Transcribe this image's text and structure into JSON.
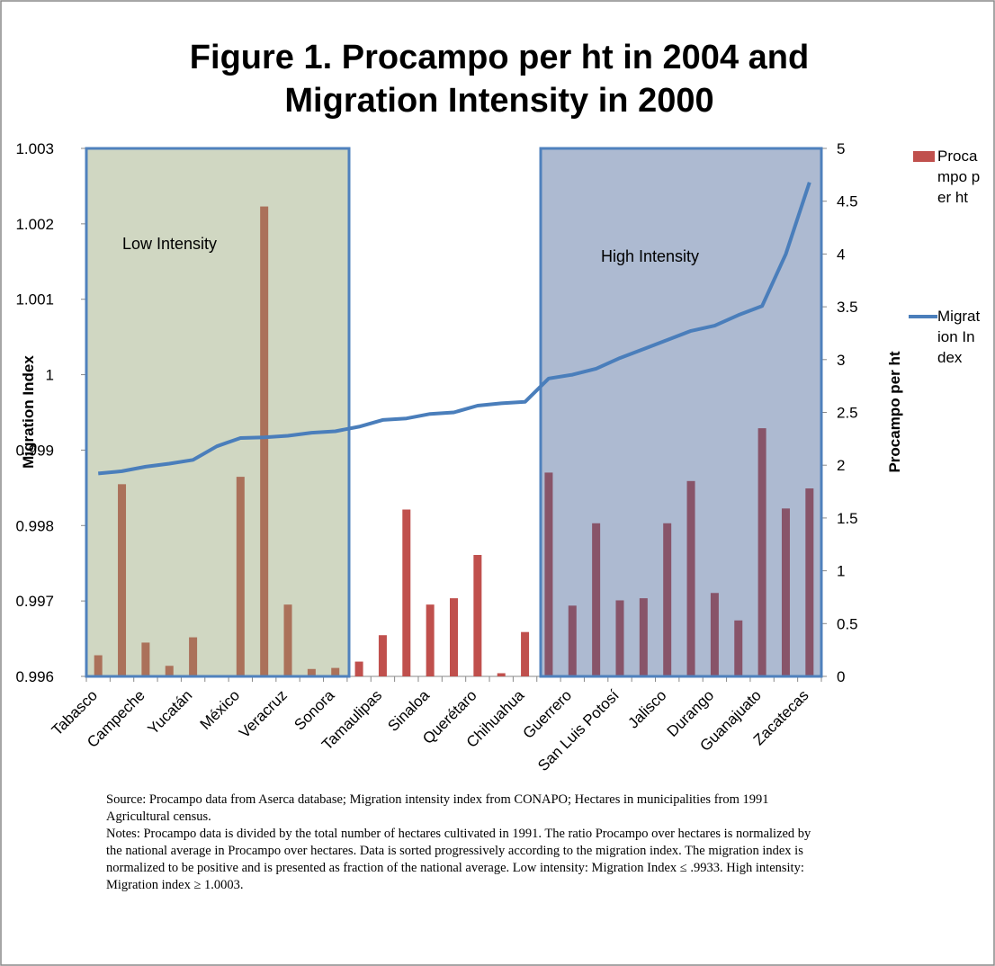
{
  "chart_data": {
    "type": "bar-line",
    "title": "Figure 1. Procampo  per ht in 2004 and Migration Intensity in 2000",
    "categories": [
      "Tabasco",
      null,
      "Campeche",
      null,
      "Yucatán",
      null,
      "México",
      null,
      "Veracruz",
      null,
      "Sonora",
      null,
      "Tamaulipas",
      null,
      "Sinaloa",
      null,
      "Querétaro",
      null,
      "Chihuahua",
      null,
      "Guerrero",
      null,
      "San Luis Potosí",
      null,
      "Jalisco",
      null,
      "Durango",
      null,
      "Guanajuato",
      null,
      "Zacatecas"
    ],
    "series": [
      {
        "name": "Procampo per ht",
        "type": "bar",
        "axis": "y2",
        "color": "#c0504d",
        "values": [
          0.2,
          1.82,
          0.32,
          0.1,
          0.37,
          0,
          1.89,
          4.45,
          0.68,
          0.07,
          0.08,
          0.14,
          0.39,
          1.58,
          0.68,
          0.74,
          1.15,
          0.03,
          0.42,
          1.93,
          0.67,
          1.45,
          0.72,
          0.74,
          1.45,
          1.85,
          0.79,
          0.53,
          2.35,
          1.59,
          1.78
        ]
      },
      {
        "name": "Migration Index",
        "type": "line",
        "axis": "y",
        "color": "#4a7ebb",
        "values": [
          0.99869,
          0.99872,
          0.99878,
          0.99882,
          0.99887,
          0.99905,
          0.99916,
          0.99917,
          0.99919,
          0.99923,
          0.99925,
          0.99931,
          0.9994,
          0.99942,
          0.99948,
          0.9995,
          0.99959,
          0.99962,
          0.99964,
          0.99995,
          1.0,
          1.00008,
          1.00022,
          1.00034,
          1.00046,
          1.00058,
          1.00065,
          1.00079,
          1.00091,
          1.0016,
          1.00255
        ]
      }
    ],
    "ylabel": "Migration Index",
    "y2label": "Procampo per ht",
    "ylim": [
      0.996,
      1.003
    ],
    "yticks": [
      0.996,
      0.997,
      0.998,
      0.999,
      1,
      1.001,
      1.002,
      1.003
    ],
    "y2lim": [
      0,
      5
    ],
    "y2ticks": [
      0,
      0.5,
      1,
      1.5,
      2,
      2.5,
      3,
      3.5,
      4,
      4.5,
      5
    ],
    "annotations": [
      "Low Intensity",
      "High Intensity"
    ],
    "source": "Source: Procampo data from Aserca database; Migration intensity index from CONAPO; Hectares in municipalities from 1991 Agricultural census.",
    "notes": "Notes: Procampo data is divided by the total number of hectares cultivated in  1991. The ratio Procampo over hectares is normalized by the national average in Procampo over hectares. Data is sorted progressively according to the  migration index. The migration index is normalized to be positive and is presented as fraction of the national average. Low intensity: Migration Index ≤ .9933. High intensity: Migration index ≥ 1.0003."
  }
}
